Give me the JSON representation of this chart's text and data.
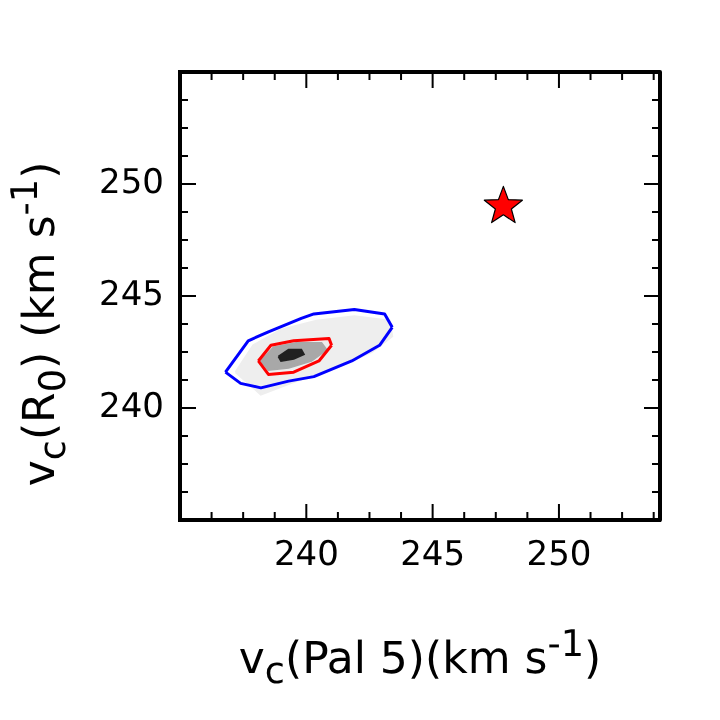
{
  "chart_data": {
    "type": "scatter",
    "xlabel": "v$_{c}$(Pal 5)(km s$^{-1}$)",
    "ylabel": "v$_{c}$(R$_{0}$) (km s$^{-1}$)",
    "xlim": [
      235,
      254
    ],
    "ylim": [
      235,
      255
    ],
    "xticks": [
      {
        "value": 236.25,
        "label": null
      },
      {
        "value": 237.5,
        "label": null
      },
      {
        "value": 238.75,
        "label": null
      },
      240,
      {
        "value": 241.25,
        "label": null
      },
      {
        "value": 242.5,
        "label": null
      },
      {
        "value": 243.75,
        "label": null
      },
      245,
      {
        "value": 246.25,
        "label": null
      },
      {
        "value": 247.5,
        "label": null
      },
      {
        "value": 248.75,
        "label": null
      },
      250,
      {
        "value": 251.25,
        "label": null
      },
      {
        "value": 252.5,
        "label": null
      },
      {
        "value": 253.75,
        "label": null
      }
    ],
    "yticks": [
      {
        "value": 236.25,
        "label": null
      },
      {
        "value": 237.5,
        "label": null
      },
      {
        "value": 238.75,
        "label": null
      },
      240,
      {
        "value": 241.25,
        "label": null
      },
      {
        "value": 242.5,
        "label": null
      },
      {
        "value": 243.75,
        "label": null
      },
      245,
      {
        "value": 246.25,
        "label": null
      },
      {
        "value": 247.5,
        "label": null
      },
      {
        "value": 248.75,
        "label": null
      },
      250,
      {
        "value": 251.25,
        "label": null
      },
      {
        "value": 252.5,
        "label": null
      },
      {
        "value": 253.75,
        "label": null
      }
    ],
    "grid": false,
    "legend": false,
    "series": [
      {
        "type": "area",
        "color": "#eeeeee",
        "x": [
          237.2,
          237.9,
          239.0,
          240.4,
          241.9,
          243.3,
          243.4,
          242.6,
          241.2,
          239.6,
          238.2,
          237.2
        ],
        "values": [
          241.6,
          242.8,
          243.5,
          243.9,
          244.1,
          243.9,
          243.2,
          242.5,
          241.8,
          241.2,
          240.6,
          241.6
        ]
      },
      {
        "type": "area",
        "color": "#a8a8a8",
        "x": [
          238.2,
          238.7,
          239.6,
          240.6,
          240.8,
          240.2,
          239.3,
          238.5,
          238.2
        ],
        "values": [
          242.1,
          242.7,
          242.9,
          242.9,
          242.6,
          242.1,
          241.8,
          241.7,
          242.1
        ]
      },
      {
        "type": "area",
        "color": "#202020",
        "x": [
          238.9,
          239.3,
          239.8,
          239.9,
          239.5,
          239.0,
          238.9
        ],
        "values": [
          242.3,
          242.6,
          242.6,
          242.4,
          242.2,
          242.1,
          242.3
        ]
      },
      {
        "type": "line",
        "marker": "none",
        "color": "#0000ff",
        "x": [
          236.8,
          237.7,
          238.5,
          239.8,
          240.3,
          241.9,
          243.1,
          243.4
        ],
        "values": [
          241.6,
          243.0,
          243.4,
          244.0,
          244.2,
          244.4,
          244.2,
          243.6
        ]
      },
      {
        "type": "line",
        "marker": "none",
        "color": "#0000ff",
        "x": [
          236.8,
          237.4,
          238.2,
          239.3,
          240.3,
          241.8,
          242.9,
          243.4
        ],
        "values": [
          241.6,
          241.1,
          240.9,
          241.2,
          241.4,
          242.1,
          242.8,
          243.6
        ]
      },
      {
        "type": "line",
        "marker": "none",
        "color": "#ff0000",
        "x": [
          238.1,
          238.6,
          239.5,
          240.9,
          241.0
        ],
        "values": [
          242.1,
          242.8,
          243.0,
          243.1,
          242.8
        ]
      },
      {
        "type": "line",
        "marker": "none",
        "color": "#ff0000",
        "x": [
          238.1,
          238.5,
          239.5,
          240.5,
          241.0
        ],
        "values": [
          242.1,
          241.5,
          241.6,
          242.1,
          242.8
        ]
      },
      {
        "marker": "star",
        "color": "#ff0000",
        "x": [
          247.8
        ],
        "values": [
          249.0
        ]
      }
    ]
  }
}
